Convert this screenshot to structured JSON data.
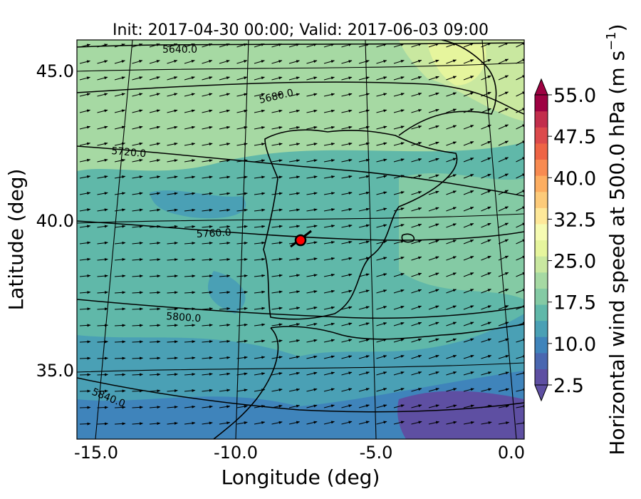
{
  "title": "Init: 2017-04-30 00:00; Valid: 2017-06-03 09:00",
  "x_axis": {
    "label": "Longitude (deg)",
    "ticks": [
      "-15.0",
      "-10.0",
      "-5.0",
      "0.0"
    ]
  },
  "y_axis": {
    "label": "Latitude (deg)",
    "ticks": [
      "45.0",
      "40.0",
      "35.0"
    ]
  },
  "colorbar": {
    "label": "Horizontal wind speed at 500.0 hPa (m s",
    "label_sup": "−1",
    "label_close": ")",
    "ticks": [
      "55.0",
      "47.5",
      "40.0",
      "32.5",
      "25.0",
      "17.5",
      "10.0",
      "2.5"
    ],
    "range": [
      2.5,
      55.0
    ],
    "colors": [
      "#5e4fa2",
      "#4a67b0",
      "#3f84bb",
      "#4aa0b5",
      "#60b8a9",
      "#84caa4",
      "#a6d9a3",
      "#c9e8a0",
      "#e6f59d",
      "#f6fbb2",
      "#fee899",
      "#fdcb7a",
      "#fdae61",
      "#f88b51",
      "#ee6445",
      "#dc4a4c",
      "#c22e4c",
      "#9e0142"
    ]
  },
  "contour_labels": [
    "5640.0",
    "5680.0",
    "5720.0",
    "5760.0",
    "5800.0",
    "5840.0"
  ],
  "marker": {
    "color": "#ff0000"
  },
  "map": {
    "extent_lon": [
      -16,
      0
    ],
    "extent_lat": [
      32.5,
      46
    ]
  }
}
